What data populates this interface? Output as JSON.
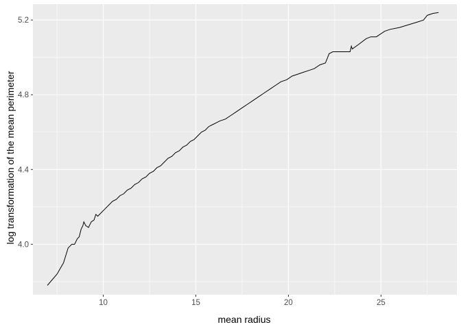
{
  "chart_data": {
    "type": "line",
    "title": "",
    "xlabel": "mean radius",
    "ylabel": "log transformation of the mean perimeter",
    "xlim": [
      6.2,
      29.1
    ],
    "ylim": [
      3.73,
      5.285
    ],
    "x_ticks": [
      10,
      15,
      20,
      25
    ],
    "y_ticks": [
      4.0,
      4.4,
      4.8,
      5.2
    ],
    "x_tick_labels": [
      "10",
      "15",
      "20",
      "25"
    ],
    "y_tick_labels": [
      "4.0",
      "4.4",
      "4.8",
      "5.2"
    ],
    "grid": true,
    "background": "#ebebeb",
    "gridline_color": "#ffffff",
    "line_color": "#000000",
    "series": [
      {
        "values": [
          [
            6.98,
            3.78
          ],
          [
            7.5,
            3.84
          ],
          [
            7.73,
            3.88
          ],
          [
            7.85,
            3.9
          ],
          [
            8.1,
            3.98
          ],
          [
            8.3,
            4.0
          ],
          [
            8.45,
            4.0
          ],
          [
            8.6,
            4.03
          ],
          [
            8.7,
            4.04
          ],
          [
            8.8,
            4.08
          ],
          [
            8.9,
            4.1
          ],
          [
            8.95,
            4.12
          ],
          [
            9.05,
            4.1
          ],
          [
            9.2,
            4.09
          ],
          [
            9.35,
            4.12
          ],
          [
            9.5,
            4.13
          ],
          [
            9.6,
            4.16
          ],
          [
            9.7,
            4.15
          ],
          [
            9.9,
            4.17
          ],
          [
            10.1,
            4.19
          ],
          [
            10.3,
            4.21
          ],
          [
            10.5,
            4.23
          ],
          [
            10.7,
            4.24
          ],
          [
            10.9,
            4.26
          ],
          [
            11.1,
            4.27
          ],
          [
            11.3,
            4.29
          ],
          [
            11.5,
            4.3
          ],
          [
            11.7,
            4.32
          ],
          [
            11.9,
            4.33
          ],
          [
            12.1,
            4.35
          ],
          [
            12.3,
            4.36
          ],
          [
            12.5,
            4.38
          ],
          [
            12.7,
            4.39
          ],
          [
            12.9,
            4.41
          ],
          [
            13.1,
            4.42
          ],
          [
            13.3,
            4.44
          ],
          [
            13.5,
            4.46
          ],
          [
            13.7,
            4.47
          ],
          [
            13.9,
            4.49
          ],
          [
            14.1,
            4.5
          ],
          [
            14.3,
            4.52
          ],
          [
            14.5,
            4.53
          ],
          [
            14.7,
            4.55
          ],
          [
            14.9,
            4.56
          ],
          [
            15.1,
            4.58
          ],
          [
            15.3,
            4.6
          ],
          [
            15.5,
            4.61
          ],
          [
            15.7,
            4.63
          ],
          [
            15.9,
            4.64
          ],
          [
            16.1,
            4.65
          ],
          [
            16.3,
            4.66
          ],
          [
            16.6,
            4.67
          ],
          [
            16.9,
            4.69
          ],
          [
            17.2,
            4.71
          ],
          [
            17.5,
            4.73
          ],
          [
            17.8,
            4.75
          ],
          [
            18.1,
            4.77
          ],
          [
            18.4,
            4.79
          ],
          [
            18.7,
            4.81
          ],
          [
            19.0,
            4.83
          ],
          [
            19.3,
            4.85
          ],
          [
            19.6,
            4.87
          ],
          [
            19.9,
            4.88
          ],
          [
            20.2,
            4.9
          ],
          [
            20.5,
            4.91
          ],
          [
            20.8,
            4.92
          ],
          [
            21.1,
            4.93
          ],
          [
            21.4,
            4.94
          ],
          [
            21.7,
            4.96
          ],
          [
            22.0,
            4.97
          ],
          [
            22.2,
            5.02
          ],
          [
            22.4,
            5.03
          ],
          [
            22.8,
            5.03
          ],
          [
            23.2,
            5.03
          ],
          [
            23.33,
            5.03
          ],
          [
            23.4,
            5.06
          ],
          [
            23.45,
            5.045
          ],
          [
            23.8,
            5.07
          ],
          [
            24.2,
            5.1
          ],
          [
            24.45,
            5.11
          ],
          [
            24.75,
            5.11
          ],
          [
            25.2,
            5.14
          ],
          [
            25.5,
            5.15
          ],
          [
            26.0,
            5.16
          ],
          [
            27.0,
            5.19
          ],
          [
            27.3,
            5.2
          ],
          [
            27.5,
            5.225
          ],
          [
            27.8,
            5.235
          ],
          [
            28.11,
            5.24
          ]
        ]
      }
    ]
  }
}
